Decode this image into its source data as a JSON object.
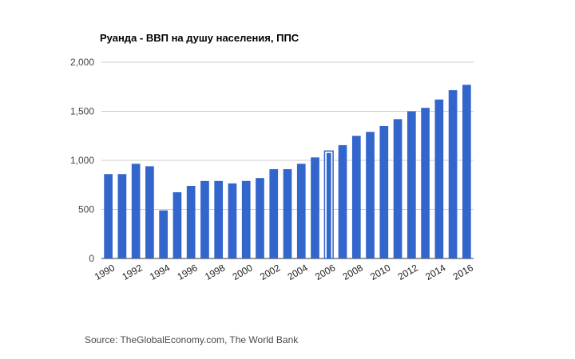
{
  "chart_data": {
    "type": "bar",
    "title": "Руанда - ВВП на душу населения, ППС",
    "xlabel": "",
    "ylabel": "",
    "categories": [
      "1990",
      "1991",
      "1992",
      "1993",
      "1994",
      "1995",
      "1996",
      "1997",
      "1998",
      "1999",
      "2000",
      "2001",
      "2002",
      "2003",
      "2004",
      "2005",
      "2006",
      "2007",
      "2008",
      "2009",
      "2010",
      "2011",
      "2012",
      "2013",
      "2014",
      "2015",
      "2016"
    ],
    "x_tick_labels": [
      "1990",
      "1992",
      "1994",
      "1996",
      "1998",
      "2000",
      "2002",
      "2004",
      "2006",
      "2008",
      "2010",
      "2012",
      "2014",
      "2016"
    ],
    "values": [
      860,
      860,
      965,
      940,
      490,
      675,
      740,
      790,
      790,
      765,
      790,
      820,
      910,
      910,
      965,
      1030,
      1095,
      1155,
      1250,
      1290,
      1350,
      1420,
      1500,
      1535,
      1620,
      1715,
      1770
    ],
    "highlighted_category": "2006",
    "ylim": [
      0,
      2000
    ],
    "y_ticks": [
      0,
      500,
      1000,
      1500,
      2000
    ],
    "y_tick_labels": [
      "0",
      "500",
      "1,000",
      "1,500",
      "2,000"
    ],
    "grid": true,
    "legend": "none",
    "bar_color": "#3366cc"
  },
  "source": "Source: TheGlobalEconomy.com, The World Bank"
}
